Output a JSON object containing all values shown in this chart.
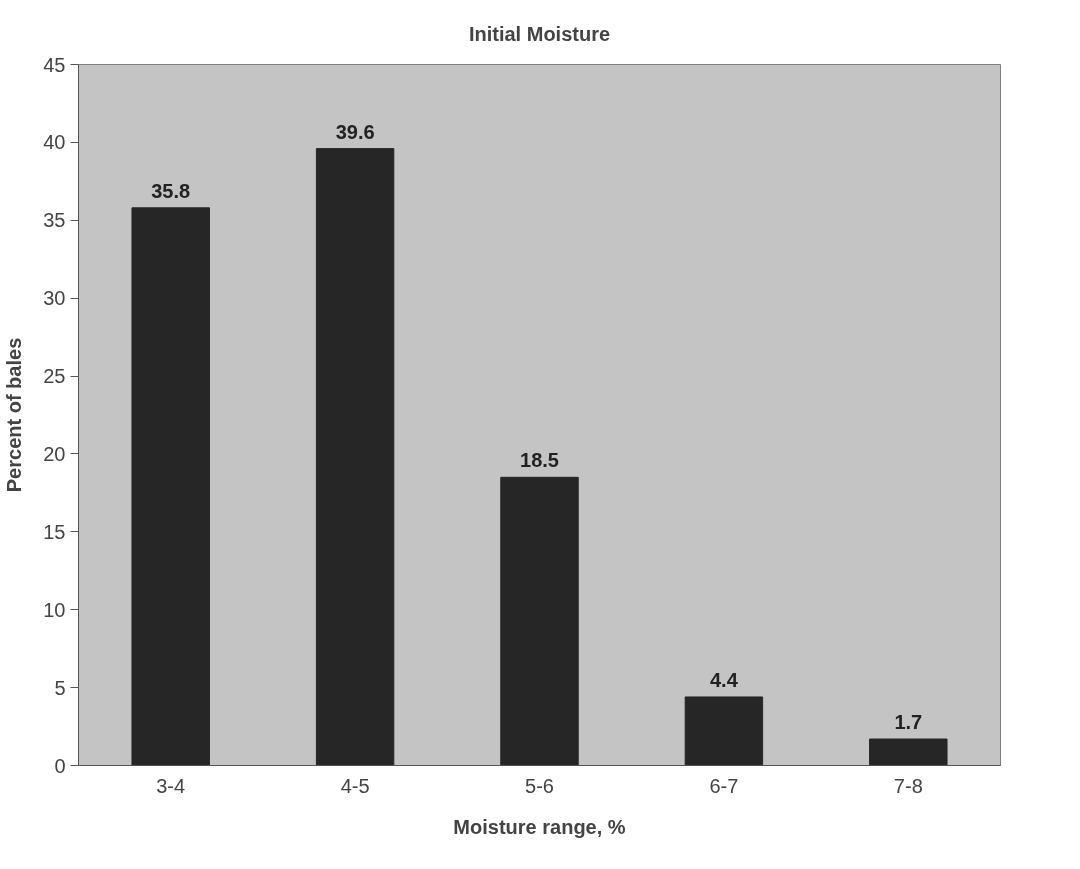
{
  "chart_data": {
    "type": "bar",
    "title": "Initial Moisture",
    "xlabel": "Moisture range, %",
    "ylabel": "Percent of bales",
    "categories": [
      "3-4",
      "4-5",
      "5-6",
      "6-7",
      "7-8"
    ],
    "values": [
      35.8,
      39.6,
      18.5,
      4.4,
      1.7
    ],
    "color": "#262626",
    "ylim": [
      0,
      45
    ],
    "yticks": [
      0,
      5,
      10,
      15,
      20,
      25,
      30,
      35,
      40,
      45
    ],
    "data_labels": true,
    "grid": false
  }
}
